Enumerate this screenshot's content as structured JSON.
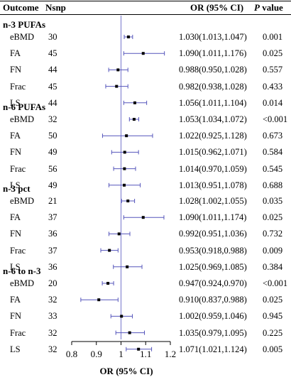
{
  "header": {
    "outcome": "Outcome",
    "nsnp": "Nsnp",
    "or_ci": "OR (95% CI)",
    "p_italic": "P",
    "p_rest": " value"
  },
  "colors": {
    "ci_line": "#5555bb",
    "ref_line": "#7777cc",
    "point": "#000000"
  },
  "chart_data": {
    "type": "forest",
    "xlabel": "OR (95% CI)",
    "xlim": [
      0.8,
      1.2
    ],
    "xticks": [
      "0.8",
      "0.9",
      "1",
      "1.1",
      "1.2"
    ],
    "reference_line": 1,
    "groups": [
      {
        "name": "n-3 PUFAs",
        "rows": [
          {
            "outcome": "eBMD",
            "nsnp": "30",
            "or": 1.03,
            "lo": 1.013,
            "hi": 1.047,
            "or_text": "1.030(1.013,1.047)",
            "p": "0.001"
          },
          {
            "outcome": "FA",
            "nsnp": "45",
            "or": 1.09,
            "lo": 1.011,
            "hi": 1.176,
            "or_text": "1.090(1.011,1.176)",
            "p": "0.025"
          },
          {
            "outcome": "FN",
            "nsnp": "44",
            "or": 0.988,
            "lo": 0.95,
            "hi": 1.028,
            "or_text": "0.988(0.950,1.028)",
            "p": "0.557"
          },
          {
            "outcome": "Frac",
            "nsnp": "45",
            "or": 0.982,
            "lo": 0.938,
            "hi": 1.028,
            "or_text": "0.982(0.938,1.028)",
            "p": "0.433"
          },
          {
            "outcome": "LS",
            "nsnp": "44",
            "or": 1.056,
            "lo": 1.011,
            "hi": 1.104,
            "or_text": "1.056(1.011,1.104)",
            "p": "0.014"
          }
        ]
      },
      {
        "name": "n-6 PUFAs",
        "rows": [
          {
            "outcome": "eBMD",
            "nsnp": "32",
            "or": 1.053,
            "lo": 1.034,
            "hi": 1.072,
            "or_text": "1.053(1.034,1.072)",
            "p": "<0.001"
          },
          {
            "outcome": "FA",
            "nsnp": "50",
            "or": 1.022,
            "lo": 0.925,
            "hi": 1.128,
            "or_text": "1.022(0.925,1.128)",
            "p": "0.673"
          },
          {
            "outcome": "FN",
            "nsnp": "49",
            "or": 1.015,
            "lo": 0.962,
            "hi": 1.071,
            "or_text": "1.015(0.962,1.071)",
            "p": "0.584"
          },
          {
            "outcome": "Frac",
            "nsnp": "56",
            "or": 1.014,
            "lo": 0.97,
            "hi": 1.059,
            "or_text": "1.014(0.970,1.059)",
            "p": "0.545"
          },
          {
            "outcome": "LS",
            "nsnp": "49",
            "or": 1.013,
            "lo": 0.951,
            "hi": 1.078,
            "or_text": "1.013(0.951,1.078)",
            "p": "0.688"
          }
        ]
      },
      {
        "name": "n-3 pct",
        "rows": [
          {
            "outcome": "eBMD",
            "nsnp": "21",
            "or": 1.028,
            "lo": 1.002,
            "hi": 1.055,
            "or_text": "1.028(1.002,1.055)",
            "p": "0.035"
          },
          {
            "outcome": "FA",
            "nsnp": "37",
            "or": 1.09,
            "lo": 1.011,
            "hi": 1.174,
            "or_text": "1.090(1.011,1.174)",
            "p": "0.025"
          },
          {
            "outcome": "FN",
            "nsnp": "36",
            "or": 0.992,
            "lo": 0.951,
            "hi": 1.036,
            "or_text": "0.992(0.951,1.036)",
            "p": "0.732"
          },
          {
            "outcome": "Frac",
            "nsnp": "37",
            "or": 0.953,
            "lo": 0.918,
            "hi": 0.988,
            "or_text": "0.953(0.918,0.988)",
            "p": "0.009"
          },
          {
            "outcome": "LS",
            "nsnp": "36",
            "or": 1.025,
            "lo": 0.969,
            "hi": 1.085,
            "or_text": "1.025(0.969,1.085)",
            "p": "0.384"
          }
        ]
      },
      {
        "name": "n-6 to n-3",
        "rows": [
          {
            "outcome": "eBMD",
            "nsnp": "20",
            "or": 0.947,
            "lo": 0.924,
            "hi": 0.97,
            "or_text": "0.947(0.924,0.970)",
            "p": "<0.001"
          },
          {
            "outcome": "FA",
            "nsnp": "32",
            "or": 0.91,
            "lo": 0.837,
            "hi": 0.988,
            "or_text": "0.910(0.837,0.988)",
            "p": "0.025"
          },
          {
            "outcome": "FN",
            "nsnp": "33",
            "or": 1.002,
            "lo": 0.959,
            "hi": 1.046,
            "or_text": "1.002(0.959,1.046)",
            "p": "0.945"
          },
          {
            "outcome": "Frac",
            "nsnp": "32",
            "or": 1.035,
            "lo": 0.979,
            "hi": 1.095,
            "or_text": "1.035(0.979,1.095)",
            "p": "0.225"
          },
          {
            "outcome": "LS",
            "nsnp": "32",
            "or": 1.071,
            "lo": 1.021,
            "hi": 1.124,
            "or_text": "1.071(1.021,1.124)",
            "p": "0.005"
          }
        ]
      }
    ]
  }
}
